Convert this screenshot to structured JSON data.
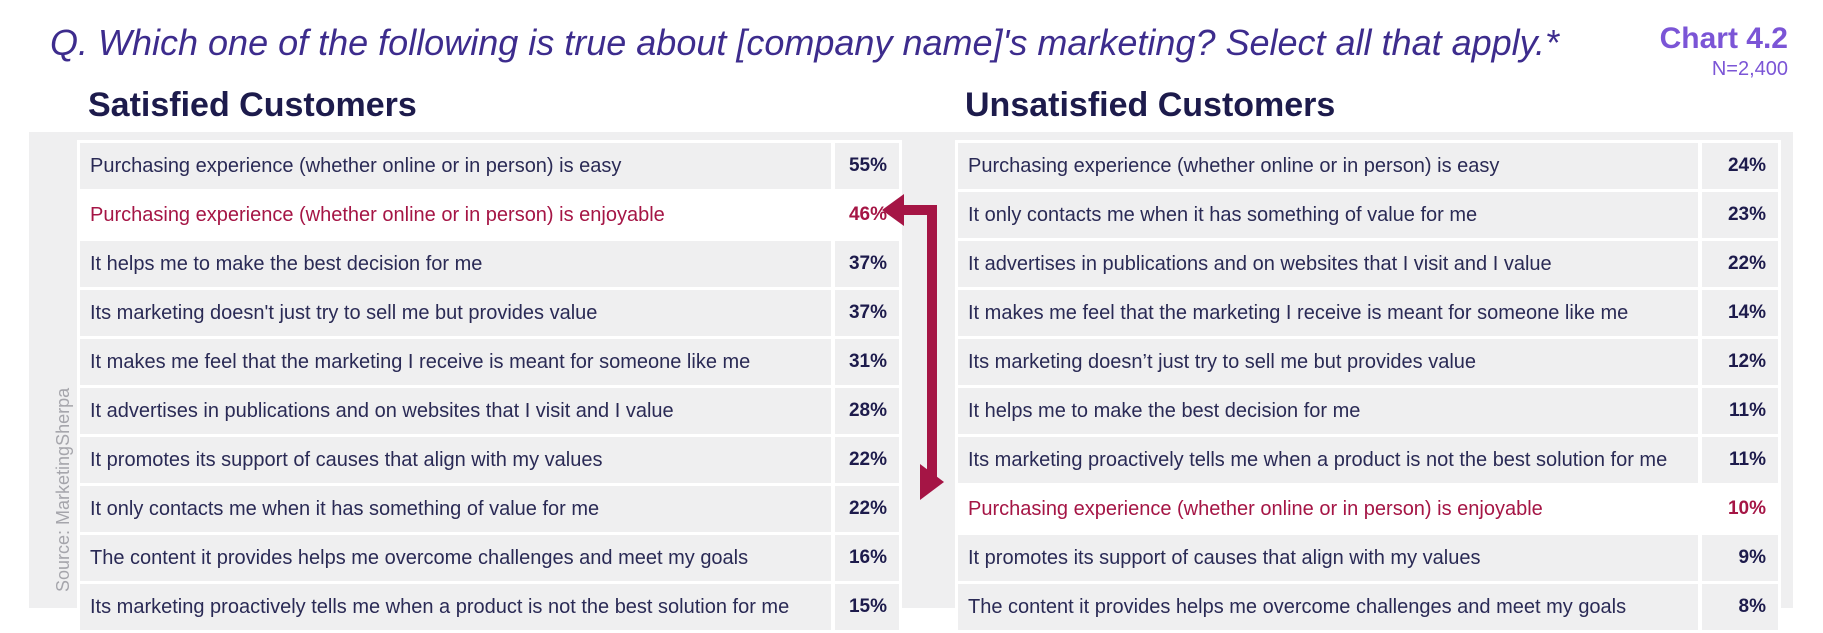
{
  "header": {
    "question": "Q. Which one of the following is true about [company name]'s marketing? Select all that apply.*",
    "chart_label": "Chart 4.2",
    "sample_size": "N=2,400"
  },
  "source": "Source: MarketingSherpa",
  "colors": {
    "title": "#3d2c8d",
    "accent": "#7b55d6",
    "highlight": "#a51545",
    "row_bg": "#efeff0",
    "text": "#2a2a55"
  },
  "chart_data": [
    {
      "type": "table",
      "title": "Satisfied Customers",
      "rows": [
        {
          "label": "Purchasing experience (whether online or in person) is easy",
          "value": "55%",
          "highlight": false
        },
        {
          "label": "Purchasing experience (whether online or in person) is enjoyable",
          "value": "46%",
          "highlight": true
        },
        {
          "label": "It helps me to make the best decision for me",
          "value": "37%",
          "highlight": false
        },
        {
          "label": "Its marketing doesn't just try to sell me but provides value",
          "value": "37%",
          "highlight": false
        },
        {
          "label": "It makes me feel that the marketing I receive is meant for someone like me",
          "value": "31%",
          "highlight": false
        },
        {
          "label": "It advertises in publications and on websites that I visit and I value",
          "value": "28%",
          "highlight": false
        },
        {
          "label": "It promotes its support of causes that align with my values",
          "value": "22%",
          "highlight": false
        },
        {
          "label": "It only contacts me when it has something of value for me",
          "value": "22%",
          "highlight": false
        },
        {
          "label": "The content it provides helps me overcome challenges and meet my goals",
          "value": "16%",
          "highlight": false
        },
        {
          "label": "Its marketing proactively tells me when a product is not the best solution for me",
          "value": "15%",
          "highlight": false
        }
      ]
    },
    {
      "type": "table",
      "title": "Unsatisfied Customers",
      "rows": [
        {
          "label": "Purchasing experience (whether online or in person) is easy",
          "value": "24%",
          "highlight": false
        },
        {
          "label": "It only contacts me when it has something of value for me",
          "value": "23%",
          "highlight": false
        },
        {
          "label": "It advertises in publications and on websites that I visit and I value",
          "value": "22%",
          "highlight": false
        },
        {
          "label": "It makes me feel that the marketing I receive is meant for someone like me",
          "value": "14%",
          "highlight": false
        },
        {
          "label": "Its marketing doesn’t just try to sell me but provides value",
          "value": "12%",
          "highlight": false
        },
        {
          "label": "It helps me to make the best decision for me",
          "value": "11%",
          "highlight": false
        },
        {
          "label": "Its marketing proactively tells me when a product is not the best solution for me",
          "value": "11%",
          "highlight": false
        },
        {
          "label": "Purchasing experience (whether online or in person) is enjoyable",
          "value": "10%",
          "highlight": true
        },
        {
          "label": "It promotes its support of causes that align with my values",
          "value": "9%",
          "highlight": false
        },
        {
          "label": "The content it provides helps me overcome challenges and meet my goals",
          "value": "8%",
          "highlight": false
        }
      ]
    }
  ]
}
